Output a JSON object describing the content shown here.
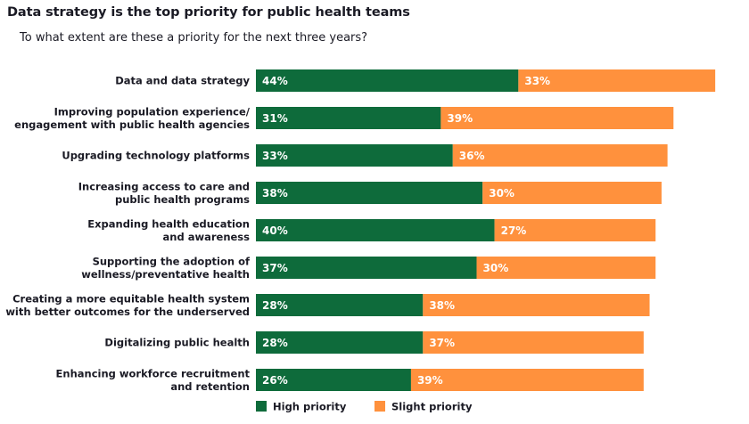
{
  "chart_data": {
    "type": "bar",
    "orientation": "horizontal",
    "stacked": true,
    "title": "Data strategy is the top priority for public health teams",
    "subtitle": "To what extent are these a priority for the next three years?",
    "categories": [
      [
        "Data and data strategy"
      ],
      [
        "Improving population experience/",
        "engagement with public health agencies"
      ],
      [
        "Upgrading technology platforms"
      ],
      [
        "Increasing access to care and",
        "public health programs"
      ],
      [
        "Expanding health education",
        "and awareness"
      ],
      [
        "Supporting the adoption of",
        "wellness/preventative health"
      ],
      [
        "Creating a more equitable health system",
        "with better outcomes for the underserved"
      ],
      [
        "Digitalizing public health"
      ],
      [
        "Enhancing workforce recruitment",
        "and retention"
      ]
    ],
    "series": [
      {
        "name": "High priority",
        "color": "#0e6b3b",
        "values": [
          44,
          31,
          33,
          38,
          40,
          37,
          28,
          28,
          26
        ]
      },
      {
        "name": "Slight priority",
        "color": "#ff913d",
        "values": [
          33,
          39,
          36,
          30,
          27,
          30,
          38,
          37,
          39
        ]
      }
    ],
    "value_suffix": "%",
    "xlim": [
      0,
      80
    ],
    "legend_position": "bottom"
  }
}
